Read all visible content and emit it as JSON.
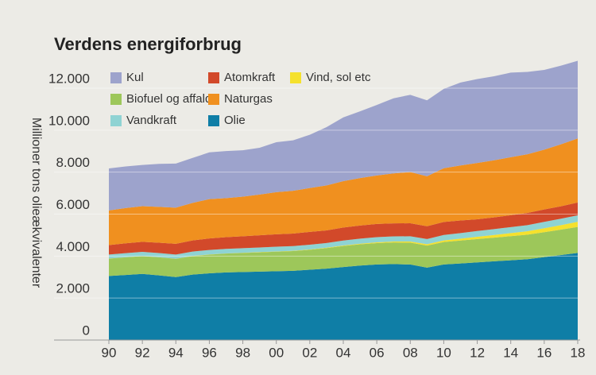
{
  "chart_data": {
    "type": "stacked-area",
    "title": "Verdens energiforbrug",
    "y_label": "Millioner tons olieækvivalenter",
    "x": [
      1990,
      1991,
      1992,
      1993,
      1994,
      1995,
      1996,
      1997,
      1998,
      1999,
      2000,
      2001,
      2002,
      2003,
      2004,
      2005,
      2006,
      2007,
      2008,
      2009,
      2010,
      2011,
      2012,
      2013,
      2014,
      2015,
      2016,
      2017,
      2018
    ],
    "xlim": [
      1990,
      2018
    ],
    "xticks": [
      {
        "value": 1990,
        "label": "90"
      },
      {
        "value": 1992,
        "label": "92"
      },
      {
        "value": 1994,
        "label": "94"
      },
      {
        "value": 1996,
        "label": "96"
      },
      {
        "value": 1998,
        "label": "98"
      },
      {
        "value": 2000,
        "label": "00"
      },
      {
        "value": 2002,
        "label": "02"
      },
      {
        "value": 2004,
        "label": "04"
      },
      {
        "value": 2006,
        "label": "06"
      },
      {
        "value": 2008,
        "label": "08"
      },
      {
        "value": 2010,
        "label": "10"
      },
      {
        "value": 2012,
        "label": "12"
      },
      {
        "value": 2014,
        "label": "14"
      },
      {
        "value": 2016,
        "label": "16"
      },
      {
        "value": 2018,
        "label": "18"
      }
    ],
    "ylim": [
      0,
      13400
    ],
    "yticks": [
      0,
      {
        "value": 2000,
        "label": "2.000"
      },
      {
        "value": 4000,
        "label": "4.000"
      },
      {
        "value": 6000,
        "label": "6.000"
      },
      {
        "value": 8000,
        "label": "8.000"
      },
      {
        "value": 10000,
        "label": "10.000"
      },
      {
        "value": 12000,
        "label": "12.000"
      }
    ],
    "grid": true,
    "series": [
      {
        "name": "Olie",
        "color": "#0f7ea6",
        "values": [
          3050,
          3100,
          3150,
          3080,
          3000,
          3120,
          3180,
          3220,
          3240,
          3260,
          3280,
          3300,
          3350,
          3400,
          3480,
          3550,
          3600,
          3620,
          3600,
          3450,
          3600,
          3650,
          3700,
          3750,
          3800,
          3850,
          3950,
          4050,
          4150
        ]
      },
      {
        "name": "Biofuel og affald",
        "color": "#9dc75a",
        "values": [
          830,
          840,
          850,
          860,
          870,
          880,
          890,
          900,
          910,
          920,
          930,
          940,
          950,
          980,
          1000,
          1010,
          1020,
          1030,
          1040,
          1050,
          1070,
          1090,
          1110,
          1130,
          1150,
          1170,
          1190,
          1210,
          1240
        ]
      },
      {
        "name": "Vind, sol etc",
        "color": "#f5e12d",
        "values": [
          5,
          5,
          5,
          5,
          6,
          6,
          7,
          8,
          9,
          10,
          12,
          14,
          17,
          20,
          24,
          30,
          36,
          44,
          54,
          64,
          78,
          92,
          110,
          125,
          145,
          165,
          190,
          215,
          245
        ]
      },
      {
        "name": "Vandkraft",
        "color": "#8fd3d3",
        "values": [
          190,
          195,
          195,
          200,
          200,
          210,
          215,
          215,
          220,
          220,
          225,
          220,
          225,
          225,
          235,
          240,
          245,
          245,
          250,
          250,
          260,
          265,
          275,
          280,
          285,
          290,
          300,
          305,
          310
        ]
      },
      {
        "name": "Atomkraft",
        "color": "#d2492a",
        "values": [
          450,
          470,
          480,
          490,
          510,
          530,
          550,
          560,
          565,
          580,
          590,
          600,
          610,
          600,
          620,
          625,
          630,
          620,
          620,
          610,
          620,
          600,
          560,
          560,
          570,
          580,
          590,
          595,
          610
        ]
      },
      {
        "name": "Naturgas",
        "color": "#f0901f",
        "values": [
          1650,
          1680,
          1700,
          1710,
          1720,
          1790,
          1870,
          1860,
          1890,
          1940,
          2010,
          2040,
          2090,
          2140,
          2210,
          2260,
          2310,
          2380,
          2440,
          2380,
          2560,
          2620,
          2680,
          2720,
          2760,
          2800,
          2850,
          2950,
          3050
        ]
      },
      {
        "name": "Kul",
        "color": "#9da3cc",
        "values": [
          2000,
          1980,
          1960,
          2050,
          2100,
          2140,
          2230,
          2240,
          2210,
          2230,
          2380,
          2400,
          2540,
          2780,
          3040,
          3180,
          3360,
          3580,
          3680,
          3620,
          3780,
          3950,
          4000,
          4000,
          4030,
          3920,
          3800,
          3750,
          3700
        ]
      }
    ]
  }
}
